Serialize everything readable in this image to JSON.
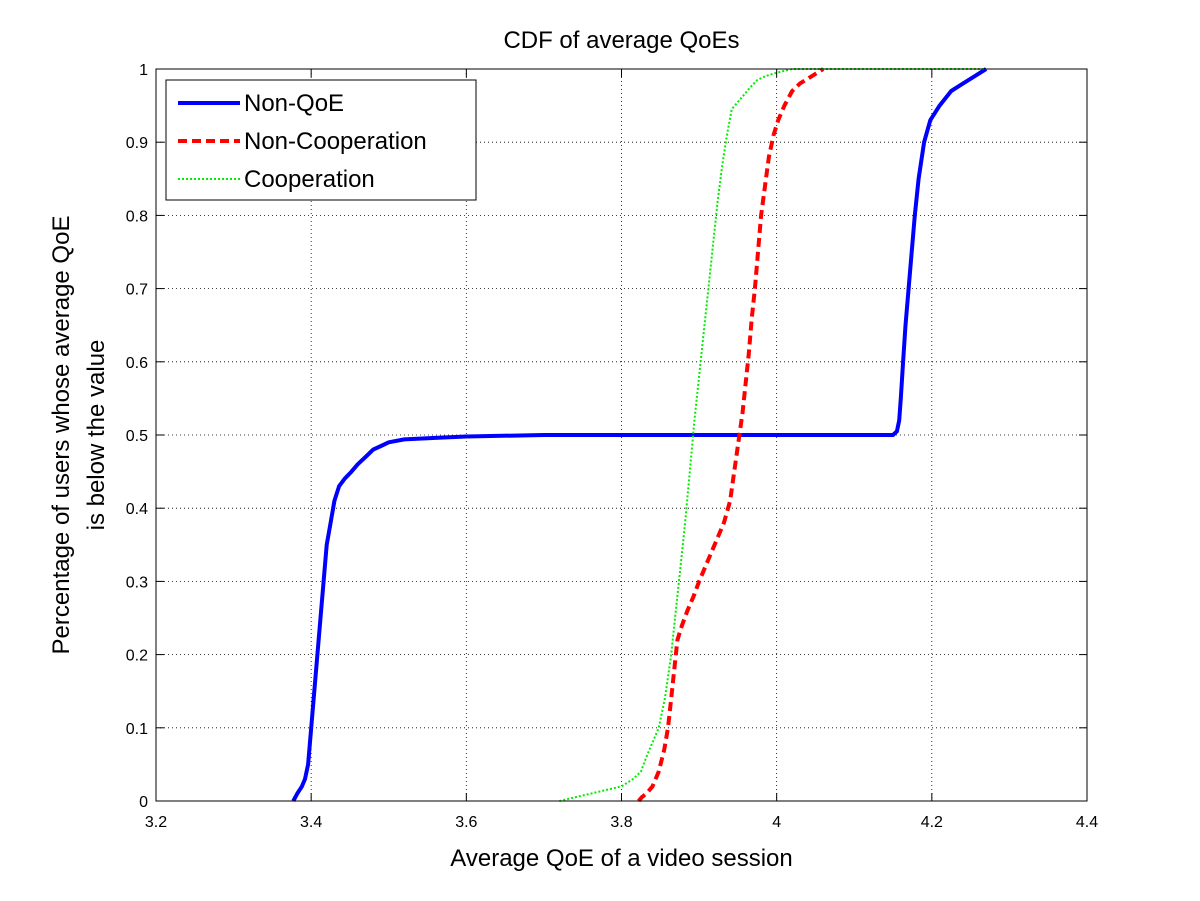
{
  "chart_data": {
    "type": "line",
    "title": "CDF of average QoEs",
    "xlabel": "Average QoE of a video session",
    "ylabel_line1": "Percentage of users whose average QoE",
    "ylabel_line2": "is below the value",
    "xlim": [
      3.2,
      4.4
    ],
    "ylim": [
      0,
      1
    ],
    "xticks": [
      3.2,
      3.4,
      3.6,
      3.8,
      4.0,
      4.2,
      4.4
    ],
    "xtick_labels": [
      "3.2",
      "3.4",
      "3.6",
      "3.8",
      "4",
      "4.2",
      "4.4"
    ],
    "yticks": [
      0,
      0.1,
      0.2,
      0.3,
      0.4,
      0.5,
      0.6,
      0.7,
      0.8,
      0.9,
      1
    ],
    "ytick_labels": [
      "0",
      "0.1",
      "0.2",
      "0.3",
      "0.4",
      "0.5",
      "0.6",
      "0.7",
      "0.8",
      "0.9",
      "1"
    ],
    "grid": true,
    "legend_position": "top-left",
    "series": [
      {
        "name": "Non-QoE",
        "color": "#0000ff",
        "style": "solid",
        "x": [
          3.377,
          3.382,
          3.388,
          3.392,
          3.396,
          3.4,
          3.404,
          3.408,
          3.412,
          3.416,
          3.42,
          3.425,
          3.43,
          3.436,
          3.443,
          3.452,
          3.46,
          3.47,
          3.48,
          3.49,
          3.5,
          3.52,
          3.56,
          3.6,
          3.7,
          3.8,
          4.0,
          4.1,
          4.15,
          4.155,
          4.158,
          4.16,
          4.163,
          4.166,
          4.17,
          4.174,
          4.178,
          4.183,
          4.19,
          4.198,
          4.21,
          4.225,
          4.24,
          4.255,
          4.27
        ],
        "y": [
          0.0,
          0.01,
          0.02,
          0.03,
          0.05,
          0.1,
          0.15,
          0.2,
          0.25,
          0.3,
          0.35,
          0.38,
          0.41,
          0.43,
          0.44,
          0.45,
          0.46,
          0.47,
          0.48,
          0.485,
          0.49,
          0.494,
          0.496,
          0.498,
          0.5,
          0.5,
          0.5,
          0.5,
          0.5,
          0.505,
          0.52,
          0.55,
          0.6,
          0.65,
          0.7,
          0.75,
          0.8,
          0.85,
          0.9,
          0.93,
          0.95,
          0.97,
          0.98,
          0.99,
          1.0
        ]
      },
      {
        "name": "Non-Cooperation",
        "color": "#ff0000",
        "style": "dashed",
        "x": [
          3.822,
          3.826,
          3.832,
          3.84,
          3.848,
          3.855,
          3.86,
          3.864,
          3.868,
          3.872,
          3.878,
          3.885,
          3.893,
          3.9,
          3.908,
          3.916,
          3.924,
          3.932,
          3.94,
          3.944,
          3.948,
          3.952,
          3.956,
          3.96,
          3.964,
          3.968,
          3.972,
          3.976,
          3.98,
          3.985,
          3.99,
          3.996,
          4.002,
          4.01,
          4.02,
          4.03,
          4.045,
          4.06
        ],
        "y": [
          0.0,
          0.005,
          0.01,
          0.02,
          0.04,
          0.07,
          0.1,
          0.14,
          0.18,
          0.22,
          0.24,
          0.26,
          0.28,
          0.3,
          0.32,
          0.34,
          0.36,
          0.38,
          0.41,
          0.44,
          0.47,
          0.5,
          0.53,
          0.57,
          0.61,
          0.66,
          0.7,
          0.75,
          0.8,
          0.84,
          0.88,
          0.91,
          0.93,
          0.95,
          0.97,
          0.98,
          0.99,
          1.0
        ]
      },
      {
        "name": "Cooperation",
        "color": "#00ee00",
        "style": "dotted",
        "x": [
          3.72,
          3.74,
          3.76,
          3.78,
          3.8,
          3.815,
          3.825,
          3.832,
          3.84,
          3.848,
          3.856,
          3.864,
          3.87,
          3.876,
          3.882,
          3.888,
          3.894,
          3.9,
          3.906,
          3.912,
          3.918,
          3.924,
          3.93,
          3.936,
          3.942,
          3.95,
          3.958,
          3.966,
          3.975,
          3.985,
          4.0,
          4.02,
          4.05,
          4.1,
          4.2,
          4.27
        ],
        "y": [
          0.0,
          0.005,
          0.01,
          0.015,
          0.02,
          0.03,
          0.04,
          0.06,
          0.08,
          0.1,
          0.14,
          0.2,
          0.26,
          0.32,
          0.38,
          0.45,
          0.52,
          0.58,
          0.64,
          0.7,
          0.76,
          0.82,
          0.87,
          0.91,
          0.945,
          0.955,
          0.965,
          0.975,
          0.985,
          0.99,
          0.995,
          1.0,
          1.0,
          1.0,
          1.0,
          1.0
        ]
      }
    ]
  }
}
